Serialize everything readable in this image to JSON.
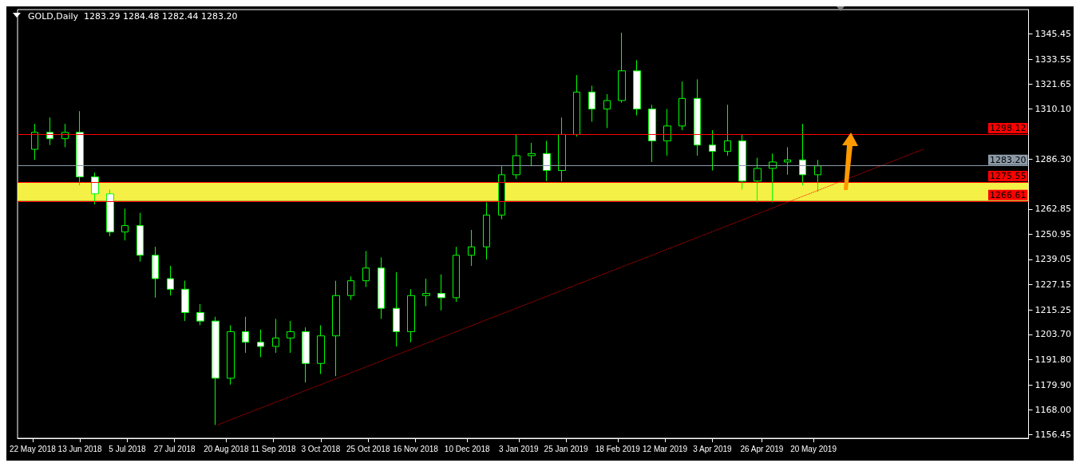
{
  "chart_data": {
    "type": "candlestick",
    "title": "GOLD,Daily  1283.29 1284.48 1282.44 1283.20",
    "series": [
      {
        "color": "#00ff00",
        "x": [
          "2018-05-23",
          "2018-05-30",
          "2018-06-06",
          "2018-06-13",
          "2018-06-20",
          "2018-06-27",
          "2018-07-04",
          "2018-07-11",
          "2018-07-18",
          "2018-07-25",
          "2018-08-01",
          "2018-08-08",
          "2018-08-15",
          "2018-08-22",
          "2018-08-29",
          "2018-09-05",
          "2018-09-12",
          "2018-09-19",
          "2018-09-26",
          "2018-10-03",
          "2018-10-10",
          "2018-10-17",
          "2018-10-24",
          "2018-10-31",
          "2018-11-07",
          "2018-11-14",
          "2018-11-21",
          "2018-11-28",
          "2018-12-05",
          "2018-12-12",
          "2018-12-19",
          "2018-12-26",
          "2019-01-02",
          "2019-01-09",
          "2019-01-16",
          "2019-01-23",
          "2019-01-30",
          "2019-02-06",
          "2019-02-13",
          "2019-02-20",
          "2019-02-27",
          "2019-03-06",
          "2019-03-13",
          "2019-03-20",
          "2019-03-27",
          "2019-04-03",
          "2019-04-10",
          "2019-04-17",
          "2019-04-24",
          "2019-05-01",
          "2019-05-08",
          "2019-05-15",
          "2019-05-22"
        ],
        "ohlc": [
          [
            1291,
            1303,
            1286,
            1299
          ],
          [
            1299,
            1306,
            1293,
            1296
          ],
          [
            1296,
            1303,
            1292,
            1299
          ],
          [
            1299,
            1309,
            1274,
            1278
          ],
          [
            1278,
            1280,
            1265,
            1270
          ],
          [
            1270,
            1272,
            1250,
            1252
          ],
          [
            1252,
            1263,
            1248,
            1255
          ],
          [
            1255,
            1261,
            1238,
            1241
          ],
          [
            1241,
            1245,
            1221,
            1230
          ],
          [
            1230,
            1236,
            1222,
            1225
          ],
          [
            1225,
            1229,
            1210,
            1214
          ],
          [
            1214,
            1218,
            1208,
            1210
          ],
          [
            1210,
            1212,
            1161,
            1183
          ],
          [
            1183,
            1208,
            1180,
            1205
          ],
          [
            1205,
            1212,
            1195,
            1200
          ],
          [
            1200,
            1206,
            1193,
            1198
          ],
          [
            1198,
            1211,
            1195,
            1202
          ],
          [
            1202,
            1210,
            1195,
            1205
          ],
          [
            1205,
            1207,
            1181,
            1190
          ],
          [
            1190,
            1208,
            1185,
            1203
          ],
          [
            1203,
            1229,
            1184,
            1222
          ],
          [
            1222,
            1231,
            1220,
            1229
          ],
          [
            1229,
            1243,
            1226,
            1235
          ],
          [
            1235,
            1240,
            1211,
            1216
          ],
          [
            1216,
            1233,
            1198,
            1205
          ],
          [
            1205,
            1225,
            1200,
            1222
          ],
          [
            1222,
            1230,
            1217,
            1223
          ],
          [
            1223,
            1232,
            1215,
            1221
          ],
          [
            1221,
            1245,
            1219,
            1241
          ],
          [
            1241,
            1253,
            1236,
            1245
          ],
          [
            1245,
            1266,
            1239,
            1260
          ],
          [
            1260,
            1283,
            1258,
            1279
          ],
          [
            1279,
            1298,
            1277,
            1288
          ],
          [
            1288,
            1294,
            1283,
            1289
          ],
          [
            1289,
            1295,
            1276,
            1281
          ],
          [
            1281,
            1306,
            1276,
            1298
          ],
          [
            1298,
            1326,
            1297,
            1318
          ],
          [
            1318,
            1321,
            1304,
            1310
          ],
          [
            1310,
            1317,
            1301,
            1314
          ],
          [
            1314,
            1346,
            1313,
            1328
          ],
          [
            1328,
            1333,
            1307,
            1310
          ],
          [
            1310,
            1312,
            1285,
            1295
          ],
          [
            1295,
            1310,
            1288,
            1302
          ],
          [
            1302,
            1323,
            1300,
            1315
          ],
          [
            1315,
            1324,
            1288,
            1293
          ],
          [
            1293,
            1300,
            1281,
            1290
          ],
          [
            1290,
            1312,
            1288,
            1295
          ],
          [
            1295,
            1298,
            1272,
            1276
          ],
          [
            1276,
            1287,
            1266,
            1282
          ],
          [
            1282,
            1289,
            1266,
            1285
          ],
          [
            1285,
            1292,
            1279,
            1286
          ],
          [
            1286,
            1303,
            1274,
            1279
          ],
          [
            1279,
            1286,
            1271,
            1283.2
          ]
        ]
      },
      {
        "type": "line",
        "color": "#ff0000",
        "line_style": "dotted",
        "x": [
          "2018-08-16",
          "2019-07-10"
        ],
        "values": [
          1161,
          1291
        ]
      }
    ],
    "xlim": [
      "2018-05-15",
      "2019-08-28"
    ],
    "xticks": [
      {
        "value": "2018-05-22",
        "label": "22 May 2018"
      },
      {
        "value": "2018-06-13",
        "label": "13 Jun 2018"
      },
      {
        "value": "2018-07-05",
        "label": "5 Jul 2018"
      },
      {
        "value": "2018-07-27",
        "label": "27 Jul 2018"
      },
      {
        "value": "2018-08-20",
        "label": "20 Aug 2018"
      },
      {
        "value": "2018-09-11",
        "label": "11 Sep 2018"
      },
      {
        "value": "2018-10-03",
        "label": "3 Oct 2018"
      },
      {
        "value": "2018-10-25",
        "label": "25 Oct 2018"
      },
      {
        "value": "2018-11-16",
        "label": "16 Nov 2018"
      },
      {
        "value": "2018-12-10",
        "label": "10 Dec 2018"
      },
      {
        "value": "2019-01-03",
        "label": "3 Jan 2019"
      },
      {
        "value": "2019-01-25",
        "label": "25 Jan 2019"
      },
      {
        "value": "2019-02-18",
        "label": "18 Feb 2019"
      },
      {
        "value": "2019-03-12",
        "label": "12 Mar 2019"
      },
      {
        "value": "2019-04-03",
        "label": "3 Apr 2019"
      },
      {
        "value": "2019-04-26",
        "label": "26 Apr 2019"
      },
      {
        "value": "2019-05-20",
        "label": "20 May 2019"
      }
    ],
    "ylim": [
      1154.7,
      1356.9
    ],
    "yticks": [
      1156.45,
      {
        "value": 1168,
        "label": "1168.00"
      },
      {
        "value": 1179.9,
        "label": "1179.90"
      },
      {
        "value": 1191.8,
        "label": "1191.80"
      },
      {
        "value": 1203.7,
        "label": "1203.70"
      },
      1215.25,
      1227.15,
      1239.05,
      1250.95,
      1262.85,
      {
        "value": 1286.3,
        "label": "1286.30"
      },
      {
        "value": 1310.1,
        "label": "1310.10"
      },
      1321.65,
      1333.55,
      1345.45
    ],
    "ref_lines": [
      {
        "axis": "y",
        "value": 1298.12,
        "label": "1298.12",
        "color": "#ff0000"
      },
      {
        "axis": "y",
        "value": 1283.2,
        "label": "1283.20",
        "color": "#8c9aa8"
      },
      {
        "axis": "y",
        "value": 1275.55,
        "label": "1275.55",
        "color": "#ff0000"
      },
      {
        "axis": "y",
        "value": 1266.61,
        "label": "1266.61",
        "color": "#ff0000"
      }
    ],
    "bands": [
      {
        "axis": "y",
        "from": 1266.61,
        "to": 1275.55,
        "color": "#f4f046"
      }
    ],
    "grid": false
  }
}
